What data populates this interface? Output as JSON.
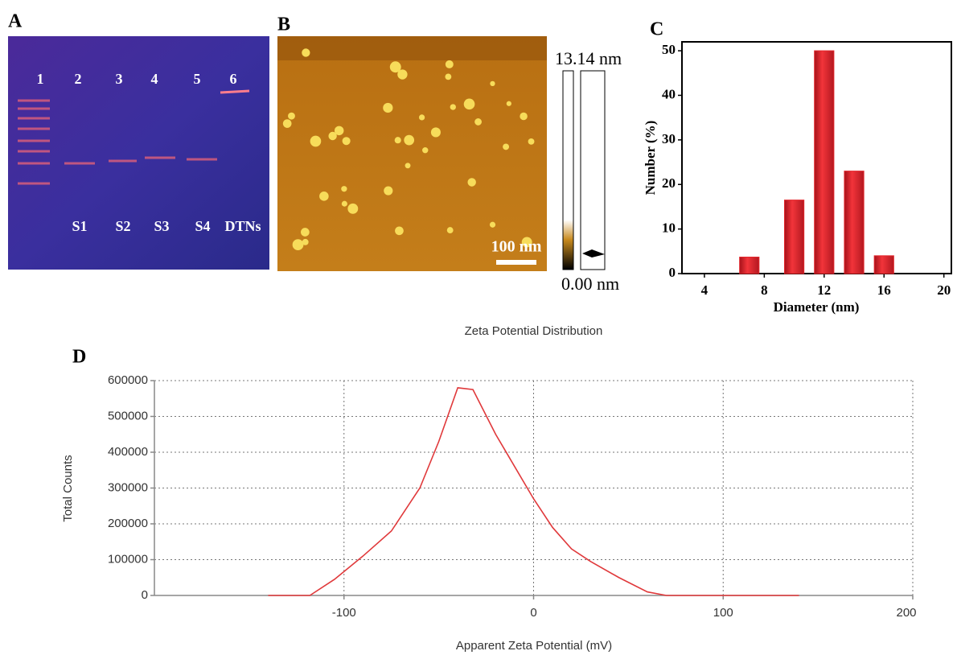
{
  "panel_labels": [
    "A",
    "B",
    "C",
    "D"
  ],
  "gel": {
    "lanes": [
      "1",
      "2",
      "3",
      "4",
      "5",
      "6"
    ],
    "samples": [
      "S1",
      "S2",
      "S3",
      "S4",
      "DTNs"
    ]
  },
  "afm": {
    "scale_max": "13.14 nm",
    "scale_min": "0.00 nm",
    "scale_bar": "100 nm"
  },
  "chart_data": [
    {
      "type": "bar",
      "xlabel": "Diameter (nm)",
      "ylabel": "Number (%)",
      "x": [
        7,
        10,
        12,
        14,
        16
      ],
      "values": [
        3.7,
        16.5,
        50,
        23,
        4
      ],
      "color": "#e3262b",
      "xlim": [
        2.5,
        20.5
      ],
      "xticks": [
        4,
        8,
        12,
        16,
        20
      ],
      "ylim": [
        0,
        52
      ],
      "yticks": [
        0,
        10,
        20,
        30,
        40,
        50
      ],
      "grid": false
    },
    {
      "type": "line",
      "title": "Zeta Potential Distribution",
      "xlabel": "Apparent Zeta Potential (mV)",
      "ylabel": "Total Counts",
      "x": [
        -140,
        -118,
        -105,
        -90,
        -75,
        -60,
        -50,
        -40,
        -32,
        -20,
        -10,
        0,
        10,
        20,
        30,
        45,
        60,
        70,
        140
      ],
      "values": [
        0,
        0,
        45000,
        110000,
        180000,
        300000,
        430000,
        580000,
        575000,
        450000,
        360000,
        270000,
        190000,
        130000,
        95000,
        50000,
        10000,
        0,
        0
      ],
      "color": "#e0393b",
      "xlim": [
        -200,
        200
      ],
      "xticks": [
        -100,
        0,
        100,
        200
      ],
      "ylim": [
        0,
        600000
      ],
      "yticks": [
        0,
        100000,
        200000,
        300000,
        400000,
        500000,
        600000
      ],
      "grid": true
    }
  ]
}
